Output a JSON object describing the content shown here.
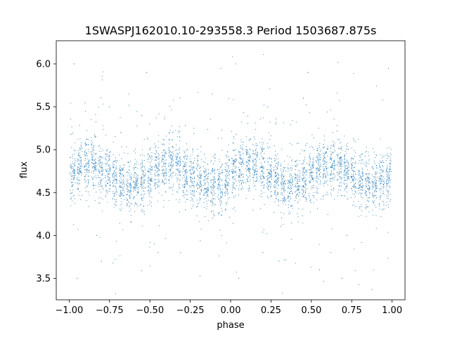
{
  "chart_data": {
    "type": "scatter",
    "title": "1SWASPJ162010.10-293558.3 Period 1503687.875s",
    "xlabel": "phase",
    "ylabel": "flux",
    "xlim": [
      -1.08,
      1.08
    ],
    "ylim": [
      3.25,
      6.27
    ],
    "x_ticks": [
      -1.0,
      -0.75,
      -0.5,
      -0.25,
      0.0,
      0.25,
      0.5,
      0.75,
      1.0
    ],
    "x_tick_labels": [
      "−1.00",
      "−0.75",
      "−0.50",
      "−0.25",
      "0.00",
      "0.25",
      "0.50",
      "0.75",
      "1.00"
    ],
    "y_ticks": [
      3.5,
      4.0,
      4.5,
      5.0,
      5.5,
      6.0
    ],
    "y_tick_labels": [
      "3.5",
      "4.0",
      "4.5",
      "5.0",
      "5.5",
      "6.0"
    ],
    "grid": false,
    "marker_color": "#1f77b4",
    "series": [
      {
        "x_range": [
          -1.0,
          1.0
        ],
        "baseline_flux": 4.7,
        "typical_spread": 0.12,
        "x": [
          -0.97,
          -0.95,
          -0.83,
          -0.8,
          -0.75,
          -0.68,
          -0.55,
          -0.52,
          -0.45,
          -0.38,
          -0.31,
          -0.28,
          0.03,
          0.05,
          0.2,
          0.23,
          0.28,
          0.3,
          0.45,
          0.48,
          0.55,
          0.62,
          0.69,
          0.72
        ],
        "y": [
          6.0,
          3.5,
          4.0,
          3.7,
          5.5,
          5.2,
          5.4,
          5.9,
          3.8,
          5.2,
          3.8,
          4.3,
          6.0,
          3.5,
          3.8,
          5.5,
          5.3,
          3.7,
          5.6,
          5.9,
          3.6,
          3.8,
          3.5,
          4.0
        ]
      }
    ]
  }
}
